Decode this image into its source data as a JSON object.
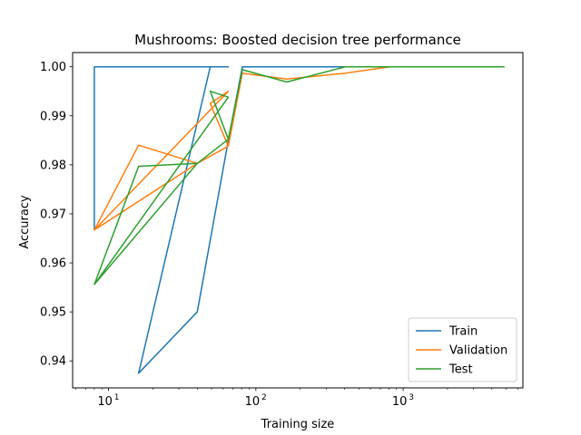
{
  "chart_data": {
    "type": "line",
    "title": "Mushrooms: Boosted decision tree performance",
    "xlabel": "Training size",
    "ylabel": "Accuracy",
    "xscale": "log",
    "xlim": [
      5.7,
      6500
    ],
    "ylim": [
      0.9345,
      1.0029
    ],
    "x_ticks": [
      10,
      100,
      1000
    ],
    "x_tick_labels": [
      "10",
      "10",
      "10"
    ],
    "x_tick_exponents": [
      "1",
      "2",
      "3"
    ],
    "y_ticks": [
      0.94,
      0.95,
      0.96,
      0.97,
      0.98,
      0.99,
      1.0
    ],
    "y_tick_labels": [
      "0.94",
      "0.95",
      "0.96",
      "0.97",
      "0.98",
      "0.99",
      "1.00"
    ],
    "grid": false,
    "legend_position": "lower-right",
    "series": [
      {
        "name": "Train",
        "color": "#1f77b4",
        "x": [
          8,
          8,
          65,
          49,
          16,
          40,
          65,
          81,
          162,
          406,
          812,
          1625,
          4875
        ],
        "y": [
          0.9667,
          1.0,
          1.0,
          1.0,
          0.9375,
          0.95,
          0.985,
          1.0,
          1.0,
          1.0,
          1.0,
          1.0,
          1.0
        ]
      },
      {
        "name": "Validation",
        "color": "#ff7f0e",
        "x": [
          8,
          16,
          40,
          65,
          49,
          65,
          8,
          40,
          65,
          81,
          162,
          406,
          812,
          1625,
          4875
        ],
        "y": [
          0.9667,
          0.984,
          0.9803,
          0.9838,
          0.9925,
          0.995,
          0.9667,
          0.9803,
          0.9838,
          0.9987,
          0.9975,
          0.9987,
          1.0,
          1.0,
          1.0
        ]
      },
      {
        "name": "Test",
        "color": "#2ca02c",
        "x": [
          8,
          16,
          40,
          65,
          49,
          65,
          8,
          40,
          65,
          81,
          162,
          406,
          812,
          1625,
          4875
        ],
        "y": [
          0.9556,
          0.9797,
          0.9803,
          0.9852,
          0.995,
          0.9938,
          0.9556,
          0.9803,
          0.9852,
          0.9994,
          0.9969,
          1.0,
          1.0,
          1.0,
          1.0
        ]
      }
    ]
  }
}
